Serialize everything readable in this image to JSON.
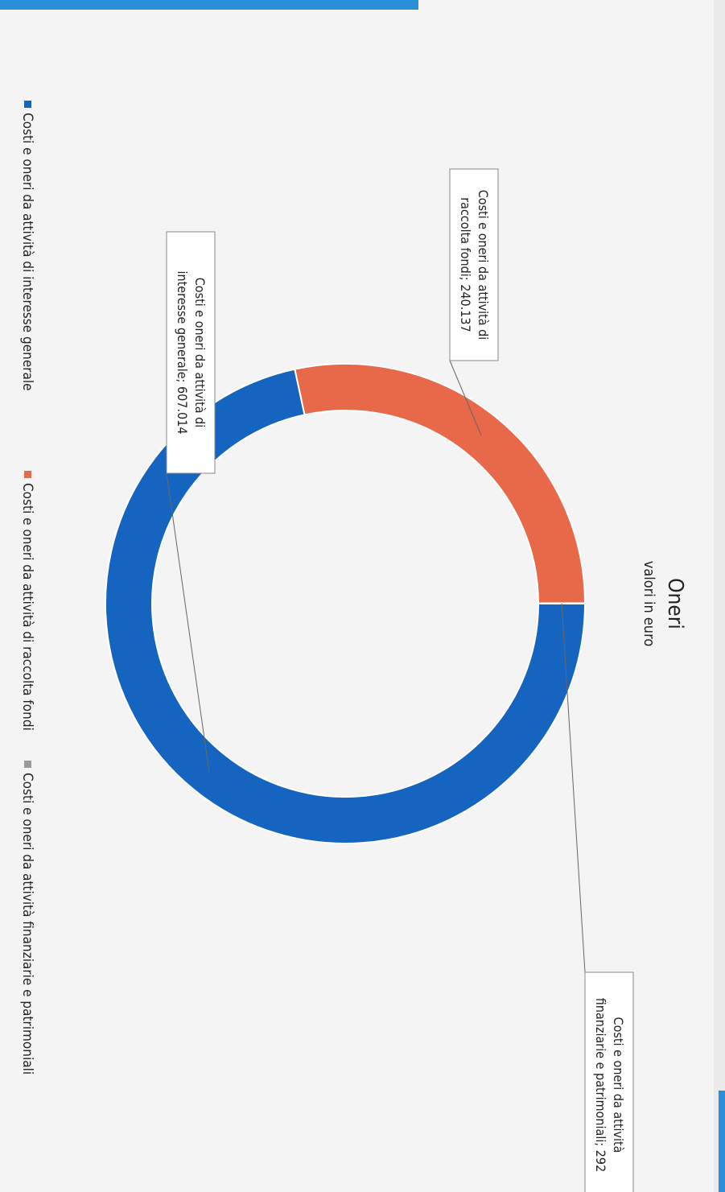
{
  "chart_data": {
    "type": "pie",
    "donut": true,
    "title": "Oneri",
    "subtitle": "valori in euro",
    "series": [
      {
        "name": "Costi e oneri da attività di interesse generale",
        "value": 607014,
        "color": "#1565c0",
        "label": [
          "Costi e oneri da attività di",
          "interesse generale; 607.014"
        ]
      },
      {
        "name": "Costi e oneri da attività di raccolta fondi",
        "value": 240137,
        "color": "#e8684a",
        "label": [
          "Costi e oneri da attività di",
          "raccolta fondi; 240.137"
        ]
      },
      {
        "name": "Costi e oneri da attività finanziarie e patrimoniali",
        "value": 292,
        "color": "#9a9a9a",
        "label": [
          "Costi e oneri da attività",
          "finanziarie e patrimoniali; 292"
        ]
      }
    ],
    "legend_position": "bottom"
  }
}
